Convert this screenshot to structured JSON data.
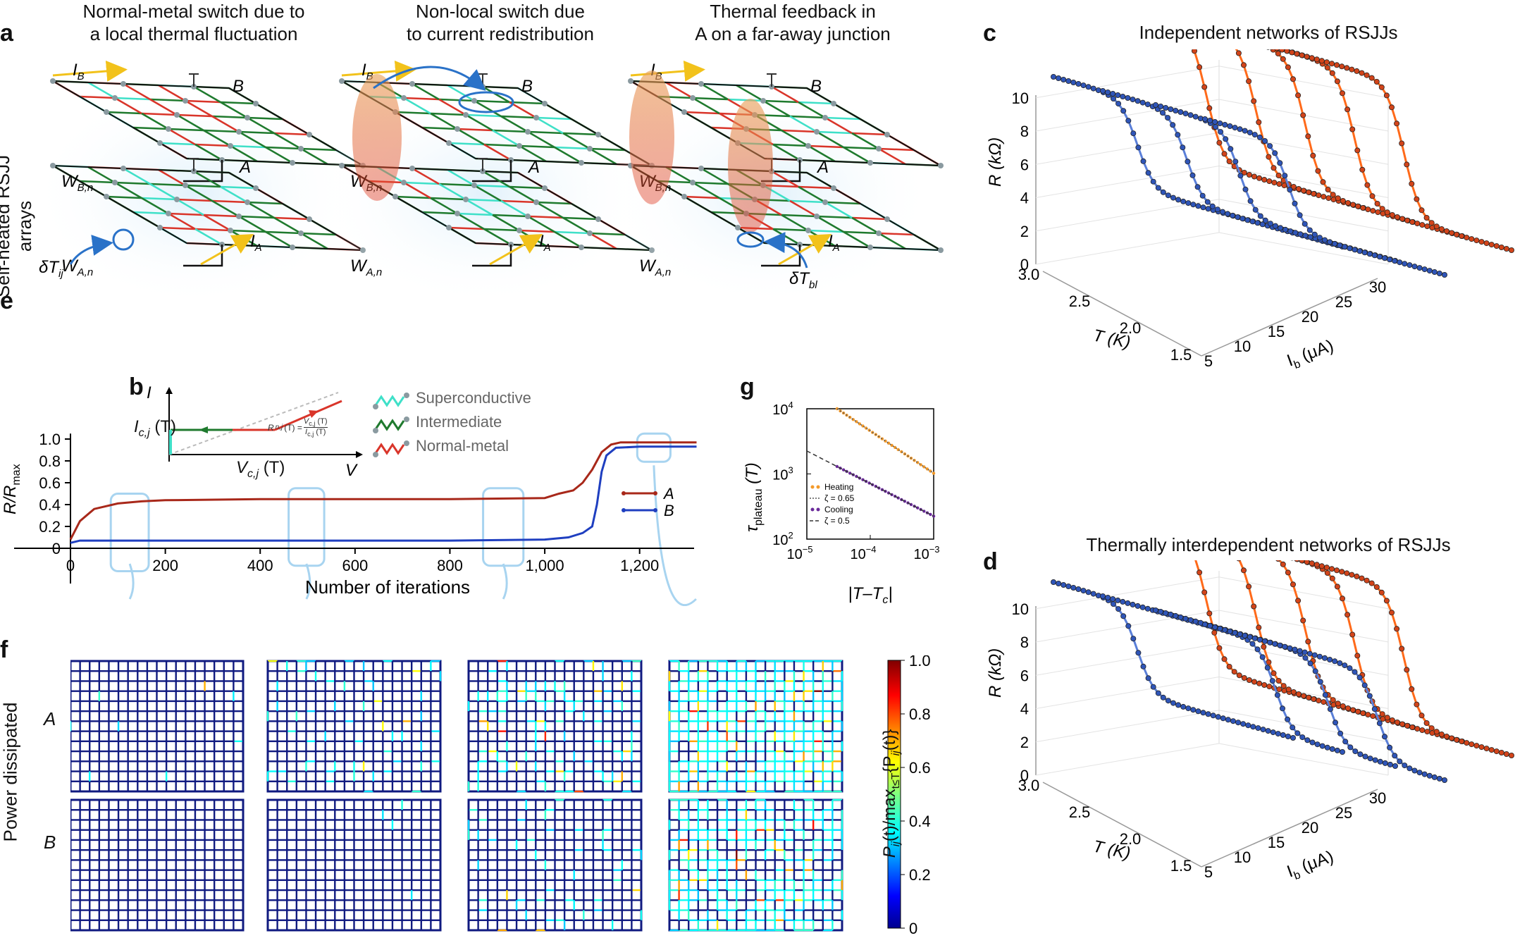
{
  "panel_labels": {
    "a": "a",
    "b": "b",
    "c": "c",
    "d": "d",
    "e": "e",
    "f": "f",
    "g": "g"
  },
  "panel_a": {
    "side_label": "Self-heated RSJJ arrays",
    "titles": [
      [
        "Normal-metal switch due to",
        "a local thermal fluctuation"
      ],
      [
        "Non-local switch due",
        "to current redistribution"
      ],
      [
        "Thermal feedback in",
        "A on a far-away junction"
      ]
    ],
    "layer_top": "B",
    "layer_bottom": "A",
    "current_top": "I",
    "current_top_sub": "B",
    "current_bottom": "I",
    "current_bottom_sub": "A",
    "wire_top": "W",
    "wire_top_sub": "B,n",
    "wire_bottom": "W",
    "wire_bottom_sub": "A,n",
    "fluct1": "δT",
    "fluct1_sub": "ij",
    "fluct3": "δT",
    "fluct3_sub": "bl",
    "colors": {
      "super": "#3fe0c8",
      "inter": "#1f7a2e",
      "normal": "#d9352a",
      "heat": "#f08a3a",
      "arrow": "#f2c21b",
      "blue": "#2a72c8"
    }
  },
  "panel_b": {
    "i_label": "I",
    "v_label": "V",
    "ic_label": "I",
    "ic_sub": "c,j",
    "ic_arg": "(T)",
    "vc_label": "V",
    "vc_sub": "c,j",
    "vc_arg": "(T)",
    "rn_formula": "R",
    "rn_sub": "n,j",
    "rn_eq": "(T) =",
    "rn_num": "V",
    "rn_num_sub": "c,j",
    "rn_num_arg": " (T)",
    "rn_den": "I",
    "rn_den_sub": "c,j",
    "rn_den_arg": " (T)",
    "legend": [
      "Superconductive",
      "Intermediate",
      "Normal-metal"
    ]
  },
  "chart_data": [
    {
      "panel": "e",
      "type": "line",
      "ylabel": "R/R",
      "ylabel_sub": "max",
      "xlabel": "Number of iterations",
      "xticks": [
        "0",
        "200",
        "400",
        "600",
        "800",
        "1,000",
        "1,200"
      ],
      "yticks": [
        "0",
        "0.2",
        "0.4",
        "0.6",
        "0.8",
        "1.0"
      ],
      "xlim": [
        -30,
        1330
      ],
      "ylim": [
        0,
        1.0
      ],
      "series": [
        {
          "name": "A",
          "color": "#a8281a",
          "x": [
            0,
            20,
            50,
            100,
            150,
            200,
            400,
            600,
            800,
            1000,
            1030,
            1060,
            1080,
            1100,
            1120,
            1140,
            1160,
            1200,
            1250,
            1300,
            1320
          ],
          "y": [
            0.08,
            0.25,
            0.36,
            0.41,
            0.43,
            0.44,
            0.45,
            0.45,
            0.45,
            0.46,
            0.5,
            0.53,
            0.6,
            0.72,
            0.88,
            0.95,
            0.97,
            0.97,
            0.97,
            0.97,
            0.97
          ]
        },
        {
          "name": "B",
          "color": "#1f3fc0",
          "x": [
            0,
            20,
            50,
            100,
            200,
            400,
            600,
            800,
            1000,
            1050,
            1080,
            1100,
            1110,
            1120,
            1130,
            1150,
            1200,
            1250,
            1300,
            1320
          ],
          "y": [
            0.05,
            0.07,
            0.07,
            0.07,
            0.07,
            0.07,
            0.07,
            0.07,
            0.08,
            0.1,
            0.14,
            0.2,
            0.4,
            0.7,
            0.85,
            0.92,
            0.93,
            0.93,
            0.93,
            0.93
          ]
        }
      ],
      "highlight_windows": [
        [
          85,
          165
        ],
        [
          460,
          535
        ],
        [
          870,
          955
        ],
        [
          1195,
          1265
        ]
      ]
    },
    {
      "panel": "g",
      "type": "scatter",
      "ylabel": "τ",
      "ylabel_sub": "plateau",
      "ylabel_arg": "(T)",
      "xlabel": "|T–T",
      "xlabel_sub": "c",
      "xlabel_end": "|",
      "log_x": true,
      "log_y": true,
      "xlim": [
        1e-05,
        0.001
      ],
      "ylim": [
        100,
        10000
      ],
      "xticks": [
        {
          "b": "10",
          "e": "−5"
        },
        {
          "b": "10",
          "e": "−4"
        },
        {
          "b": "10",
          "e": "−3"
        }
      ],
      "yticks": [
        {
          "b": "10",
          "e": "2"
        },
        {
          "b": "10",
          "e": "3"
        },
        {
          "b": "10",
          "e": "4"
        }
      ],
      "series": [
        {
          "name": "Heating",
          "color": "#f39a2a",
          "fit": "ζ = 0.65",
          "fit_color": "#555",
          "zeta": 0.65,
          "x0": 3e-05,
          "y0": 10000
        },
        {
          "name": "Cooling",
          "color": "#6a2a9a",
          "fit": "ζ = 0.5",
          "fit_color": "#333",
          "zeta": 0.5,
          "x0": 3e-05,
          "y0": 1300
        }
      ]
    },
    {
      "panel": "c",
      "type": "line",
      "title": "Independent networks of RSJJs",
      "zlabel": "R (kΩ)",
      "xlabel": "T (K)",
      "ylabel": "I",
      "ylabel_sub": "b",
      "ylabel_unit": " (μA)",
      "zticks": [
        "0",
        "2",
        "4",
        "6",
        "8",
        "10"
      ],
      "tticks": [
        "3.0",
        "2.5",
        "2.0",
        "1.5"
      ],
      "iticks": [
        "5",
        "10",
        "15",
        "20",
        "25",
        "30"
      ],
      "curves": [
        {
          "color": "#d2441a",
          "T": 3.0,
          "R_low": 8.6
        },
        {
          "color": "#2f55b8",
          "T": 3.0,
          "R_low": 5.6
        },
        {
          "color": "#d2441a",
          "T": 2.5,
          "R_low": 8.6
        },
        {
          "color": "#2f55b8",
          "T": 2.5,
          "R_low": 5.6
        },
        {
          "color": "#d2441a",
          "T": 2.0,
          "R_low": 8.6
        },
        {
          "color": "#2f55b8",
          "T": 2.0,
          "R_low": 5.6
        },
        {
          "color": "#d2441a",
          "T": 1.5,
          "R_low": 8.6
        }
      ]
    },
    {
      "panel": "d",
      "type": "line",
      "title": "Thermally interdependent networks of RSJJs",
      "zlabel": "R (kΩ)",
      "xlabel": "T (K)",
      "ylabel": "I",
      "ylabel_sub": "b",
      "ylabel_unit": " (μA)",
      "zticks": [
        "0",
        "2",
        "4",
        "6",
        "8",
        "10"
      ],
      "tticks": [
        "3.0",
        "2.5",
        "2.0",
        "1.5"
      ],
      "iticks": [
        "5",
        "10",
        "15",
        "20",
        "25",
        "30"
      ]
    }
  ],
  "panel_f": {
    "side_label": "Power dissipated",
    "row_a": "A",
    "row_b": "B",
    "colorbar_label": "P",
    "colorbar_sub": "ij",
    "colorbar_mid": "(t)/max",
    "colorbar_sub2": "t≤T",
    "colorbar_end": "{P",
    "colorbar_sub3": "ij",
    "colorbar_end2": "(t)}",
    "colorbar_ticks": [
      "0",
      "0.2",
      "0.4",
      "0.6",
      "0.8",
      "1.0"
    ],
    "grid_color": "#101a80"
  }
}
